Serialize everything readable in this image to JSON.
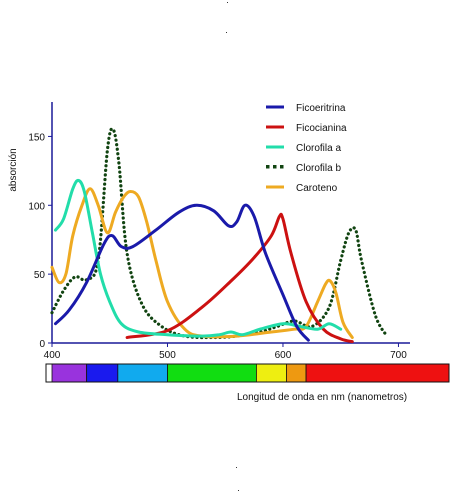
{
  "chart_data": {
    "type": "line",
    "title": "",
    "xlabel": "Longitud de onda en  nm (nanometros)",
    "ylabel": "absorción",
    "xlim": [
      400,
      710
    ],
    "ylim": [
      0,
      175
    ],
    "x_ticks": [
      "400",
      "500",
      "600",
      "700"
    ],
    "y_ticks": [
      "0",
      "50",
      "100",
      "150"
    ],
    "x_tick_values": [
      400,
      500,
      600,
      700
    ],
    "y_tick_values": [
      0,
      50,
      100,
      150
    ],
    "legend_position": "top-right",
    "series": [
      {
        "name": "Ficoeritrina",
        "color": "#1a1aaa",
        "style": "solid",
        "points": [
          [
            403,
            14
          ],
          [
            415,
            24
          ],
          [
            430,
            44
          ],
          [
            445,
            72
          ],
          [
            452,
            78
          ],
          [
            460,
            70
          ],
          [
            470,
            70
          ],
          [
            490,
            82
          ],
          [
            510,
            95
          ],
          [
            525,
            100
          ],
          [
            540,
            96
          ],
          [
            553,
            85
          ],
          [
            560,
            88
          ],
          [
            567,
            100
          ],
          [
            575,
            92
          ],
          [
            585,
            65
          ],
          [
            600,
            35
          ],
          [
            612,
            12
          ],
          [
            622,
            2
          ]
        ]
      },
      {
        "name": "Ficocianina",
        "color": "#cc1111",
        "style": "solid",
        "points": [
          [
            465,
            4
          ],
          [
            500,
            9
          ],
          [
            530,
            26
          ],
          [
            555,
            45
          ],
          [
            575,
            62
          ],
          [
            590,
            78
          ],
          [
            597,
            92
          ],
          [
            600,
            90
          ],
          [
            607,
            65
          ],
          [
            620,
            30
          ],
          [
            635,
            10
          ],
          [
            650,
            3
          ],
          [
            660,
            1
          ]
        ]
      },
      {
        "name": "Clorofila a",
        "color": "#22ddaa",
        "style": "solid",
        "points": [
          [
            403,
            82
          ],
          [
            410,
            90
          ],
          [
            418,
            112
          ],
          [
            423,
            118
          ],
          [
            428,
            110
          ],
          [
            435,
            80
          ],
          [
            442,
            50
          ],
          [
            450,
            30
          ],
          [
            460,
            14
          ],
          [
            475,
            8
          ],
          [
            500,
            6
          ],
          [
            530,
            5
          ],
          [
            545,
            6
          ],
          [
            555,
            8
          ],
          [
            565,
            6
          ],
          [
            580,
            10
          ],
          [
            600,
            14
          ],
          [
            615,
            12
          ],
          [
            630,
            10
          ],
          [
            640,
            14
          ],
          [
            650,
            10
          ]
        ]
      },
      {
        "name": "Clorofila b",
        "color": "#114411",
        "style": "dotted",
        "points": [
          [
            400,
            22
          ],
          [
            410,
            38
          ],
          [
            420,
            48
          ],
          [
            430,
            46
          ],
          [
            440,
            60
          ],
          [
            448,
            140
          ],
          [
            453,
            155
          ],
          [
            458,
            130
          ],
          [
            465,
            65
          ],
          [
            478,
            28
          ],
          [
            495,
            12
          ],
          [
            515,
            5
          ],
          [
            540,
            4
          ],
          [
            560,
            5
          ],
          [
            580,
            8
          ],
          [
            595,
            12
          ],
          [
            610,
            16
          ],
          [
            625,
            12
          ],
          [
            640,
            26
          ],
          [
            650,
            60
          ],
          [
            657,
            80
          ],
          [
            663,
            82
          ],
          [
            668,
            60
          ],
          [
            680,
            20
          ],
          [
            690,
            5
          ]
        ]
      },
      {
        "name": "Caroteno",
        "color": "#eeaa22",
        "style": "solid",
        "points": [
          [
            400,
            55
          ],
          [
            406,
            44
          ],
          [
            412,
            50
          ],
          [
            418,
            78
          ],
          [
            426,
            100
          ],
          [
            433,
            112
          ],
          [
            440,
            100
          ],
          [
            448,
            80
          ],
          [
            455,
            95
          ],
          [
            462,
            106
          ],
          [
            468,
            110
          ],
          [
            475,
            106
          ],
          [
            482,
            88
          ],
          [
            490,
            60
          ],
          [
            500,
            30
          ],
          [
            515,
            10
          ],
          [
            530,
            5
          ],
          [
            560,
            5
          ],
          [
            590,
            8
          ],
          [
            610,
            10
          ],
          [
            620,
            12
          ],
          [
            630,
            30
          ],
          [
            637,
            43
          ],
          [
            641,
            45
          ],
          [
            646,
            36
          ],
          [
            652,
            15
          ],
          [
            660,
            4
          ]
        ]
      }
    ],
    "color_bar": {
      "segments": [
        {
          "from": 400,
          "to": 430,
          "color": "#9933dd"
        },
        {
          "from": 430,
          "to": 457,
          "color": "#1a1aee"
        },
        {
          "from": 457,
          "to": 500,
          "color": "#11aaee"
        },
        {
          "from": 500,
          "to": 577,
          "color": "#11dd11"
        },
        {
          "from": 577,
          "to": 603,
          "color": "#eeee11"
        },
        {
          "from": 603,
          "to": 620,
          "color": "#ee9911"
        },
        {
          "from": 620,
          "to": 756,
          "color": "#ee1111"
        }
      ]
    }
  }
}
